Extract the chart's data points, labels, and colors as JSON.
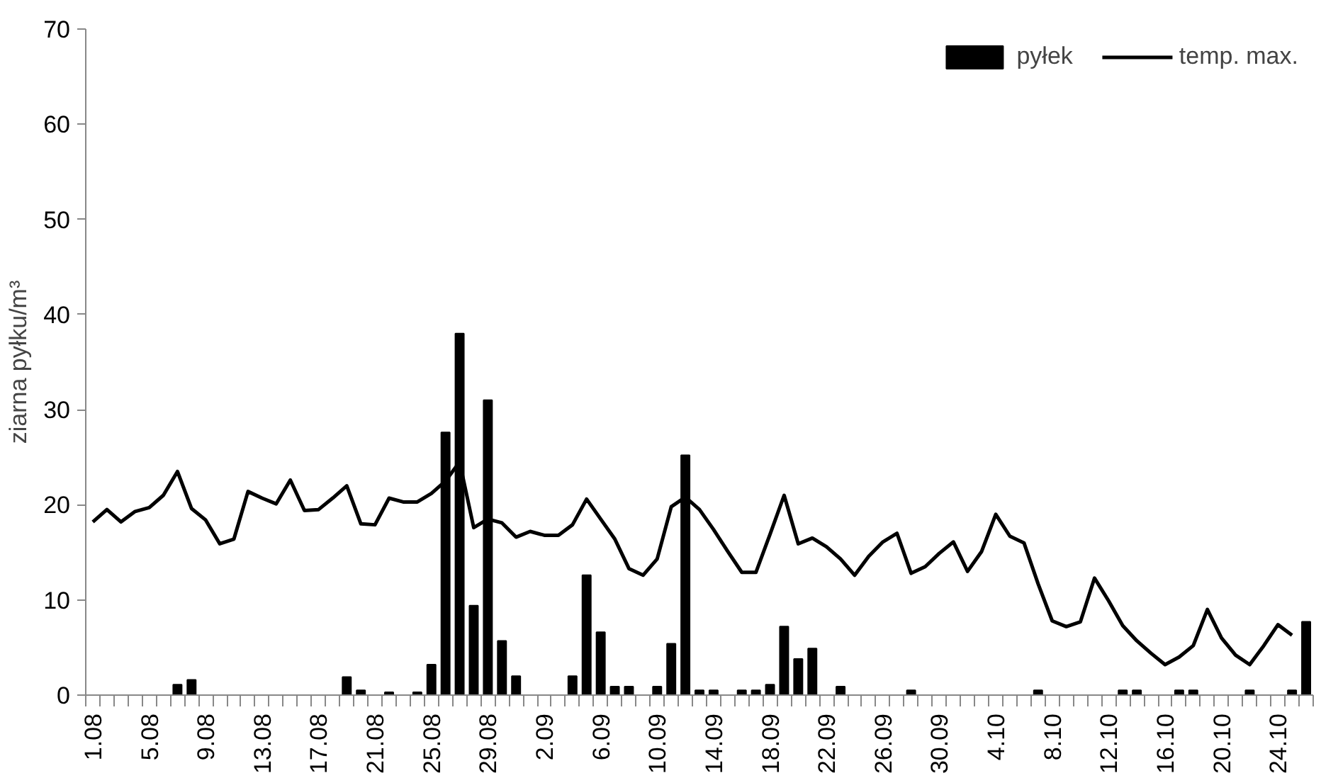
{
  "chart_data": {
    "type": "bar",
    "ylabel": "ziarna pyłku/m³",
    "categories": [
      "1.08",
      null,
      null,
      null,
      "5.08",
      null,
      null,
      null,
      "9.08",
      null,
      null,
      null,
      "13.08",
      null,
      null,
      null,
      "17.08",
      null,
      null,
      null,
      "21.08",
      null,
      null,
      null,
      "25.08",
      null,
      null,
      null,
      "29.08",
      null,
      null,
      null,
      "2.09",
      null,
      null,
      null,
      "6.09",
      null,
      null,
      null,
      "10.09",
      null,
      null,
      null,
      "14.09",
      null,
      null,
      null,
      "18.09",
      null,
      null,
      null,
      "22.09",
      null,
      null,
      null,
      "26.09",
      null,
      null,
      null,
      "30.09",
      null,
      null,
      null,
      "4.10",
      null,
      null,
      null,
      "8.10",
      null,
      null,
      null,
      "12.10",
      null,
      null,
      null,
      "16.10",
      null,
      null,
      null,
      "20.10",
      null,
      null,
      null,
      "24.10",
      null,
      null
    ],
    "series": [
      {
        "name": "pyłek",
        "color": "#000000",
        "values": [
          0,
          0,
          0,
          0,
          0,
          0,
          1.1,
          1.6,
          0,
          0,
          0,
          0,
          0,
          0,
          0,
          0,
          0,
          0,
          1.9,
          0.5,
          0,
          0.3,
          0,
          0.3,
          3.2,
          27.6,
          38,
          9.4,
          31,
          5.7,
          2.0,
          0,
          0,
          0,
          2.0,
          12.6,
          6.6,
          0.9,
          0.9,
          0,
          0.9,
          5.4,
          25.2,
          0.5,
          0.5,
          0,
          0.5,
          0.5,
          1.1,
          7.2,
          3.8,
          4.9,
          0,
          0.9,
          0,
          0,
          0,
          0,
          0.5,
          0,
          0,
          0,
          0,
          0,
          0,
          0,
          0,
          0.5,
          0,
          0,
          0,
          0,
          0,
          0.5,
          0.5,
          0,
          0,
          0.5,
          0.5,
          0,
          0,
          0,
          0.5,
          0,
          0,
          0.5,
          7.7
        ]
      },
      {
        "name": "temp. max.",
        "type": "line",
        "color": "#000000",
        "values": [
          18.2,
          19.5,
          18.2,
          19.3,
          19.7,
          21.0,
          23.5,
          19.6,
          18.4,
          15.9,
          16.4,
          21.4,
          20.7,
          20.1,
          22.6,
          19.4,
          19.5,
          20.7,
          22.0,
          18.0,
          17.9,
          20.7,
          20.3,
          20.3,
          21.2,
          22.5,
          24.5,
          17.6,
          18.5,
          18.1,
          16.6,
          17.2,
          16.8,
          16.8,
          17.9,
          20.6,
          18.5,
          16.4,
          13.3,
          12.6,
          14.3,
          19.8,
          20.8,
          19.5,
          17.4,
          15.1,
          12.9,
          12.9,
          16.9,
          21.0,
          15.9,
          16.5,
          15.6,
          14.3,
          12.6,
          14.6,
          16.1,
          17.0,
          12.8,
          13.5,
          14.9,
          16.1,
          13.0,
          15.1,
          19.0,
          16.7,
          16.0,
          11.7,
          7.8,
          7.2,
          7.7,
          12.3,
          9.9,
          7.3,
          5.7,
          4.4,
          3.2,
          4.0,
          5.2,
          9.0,
          6.0,
          4.2,
          3.2,
          5.2,
          7.4,
          6.3,
          null
        ]
      }
    ],
    "ylim": [
      0,
      70
    ],
    "yticks": [
      0,
      10,
      20,
      30,
      40,
      50,
      60,
      70
    ],
    "grid": false,
    "legend": "top right"
  }
}
